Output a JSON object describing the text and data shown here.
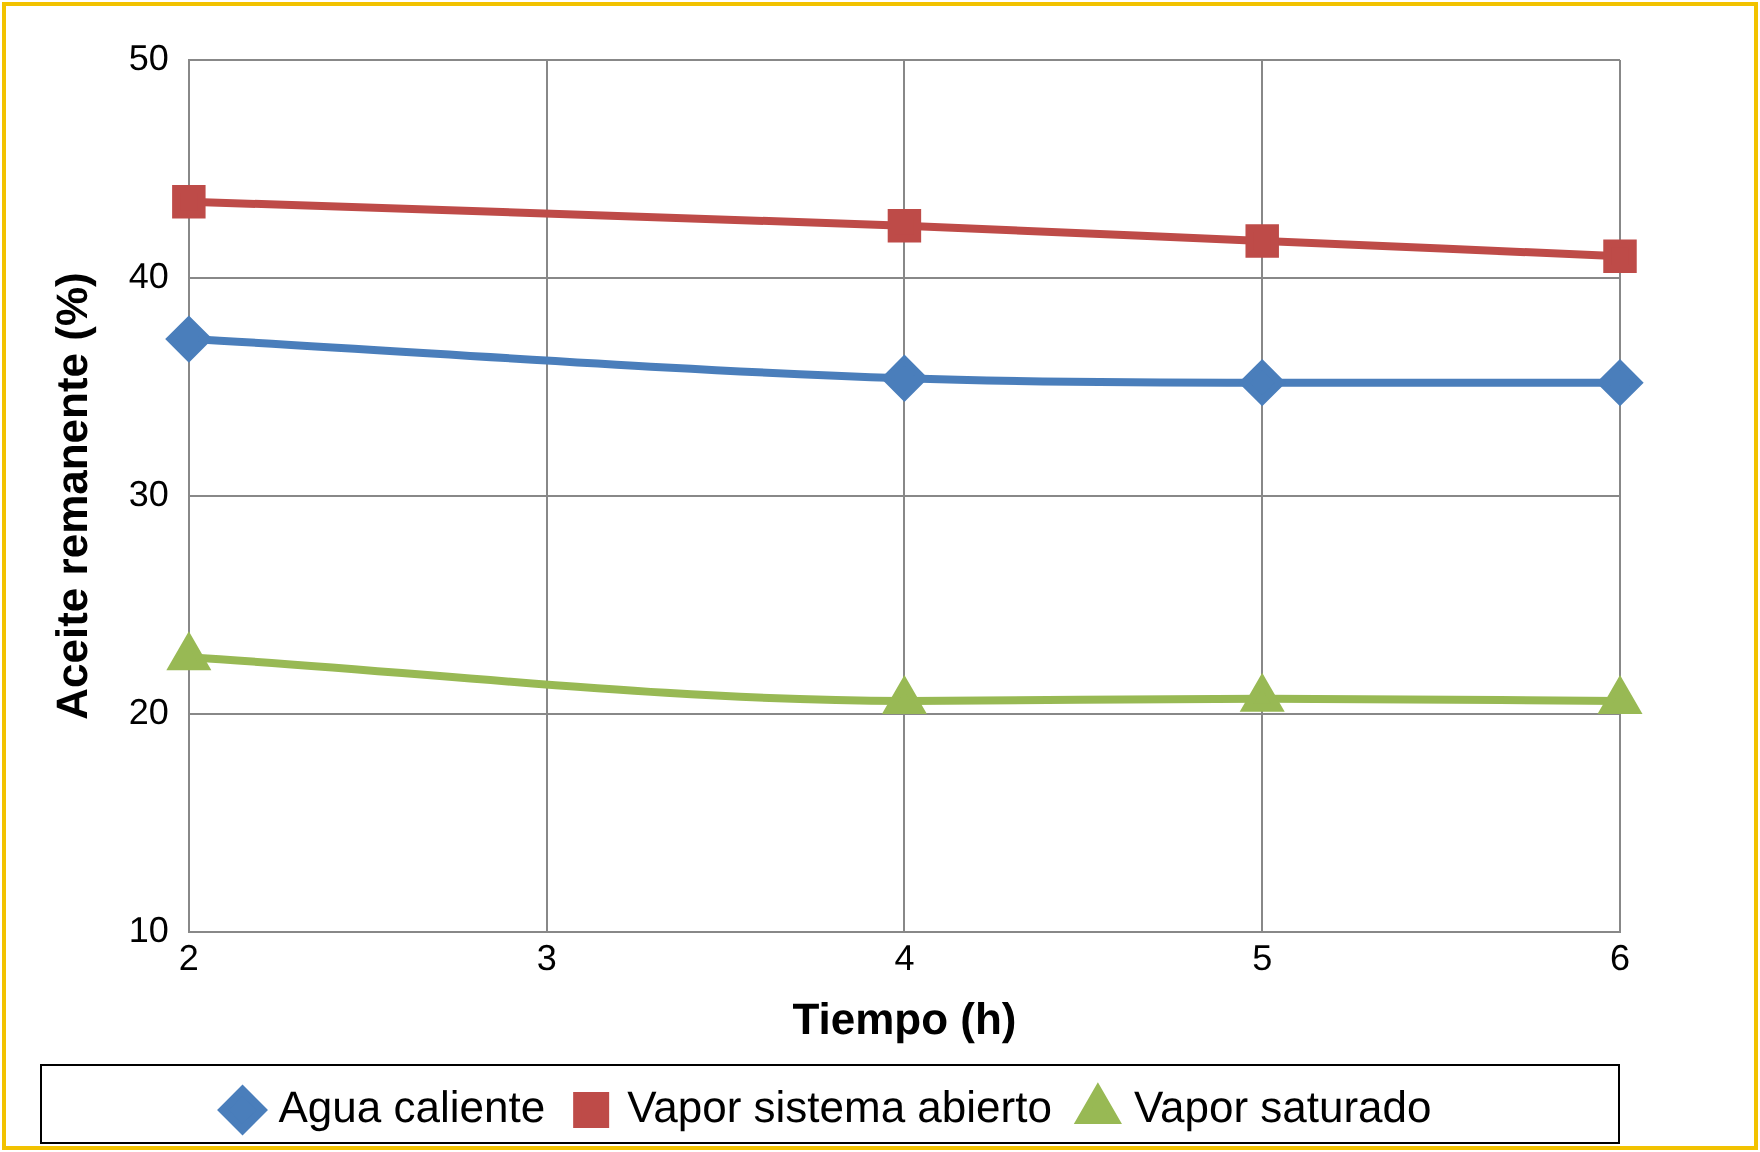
{
  "chart_data": {
    "type": "line",
    "xlabel": "Tiempo (h)",
    "ylabel": "Aceite remanente (%)",
    "x": [
      2,
      4,
      5,
      6
    ],
    "xlim": [
      2,
      6
    ],
    "xticks": [
      2,
      3,
      4,
      5,
      6
    ],
    "ylim": [
      10,
      50
    ],
    "yticks": [
      10,
      20,
      30,
      40,
      50
    ],
    "grid": true,
    "legend": "bottom",
    "series": [
      {
        "name": "Agua caliente",
        "color": "#4a7ebb",
        "marker": "diamond",
        "values": [
          37.2,
          35.4,
          35.2,
          35.2
        ]
      },
      {
        "name": "Vapor sistema abierto",
        "color": "#be4b48",
        "marker": "square",
        "values": [
          43.5,
          42.4,
          41.7,
          41.0
        ]
      },
      {
        "name": "Vapor saturado",
        "color": "#98b954",
        "marker": "triangle",
        "values": [
          22.6,
          20.6,
          20.7,
          20.6
        ]
      }
    ]
  }
}
